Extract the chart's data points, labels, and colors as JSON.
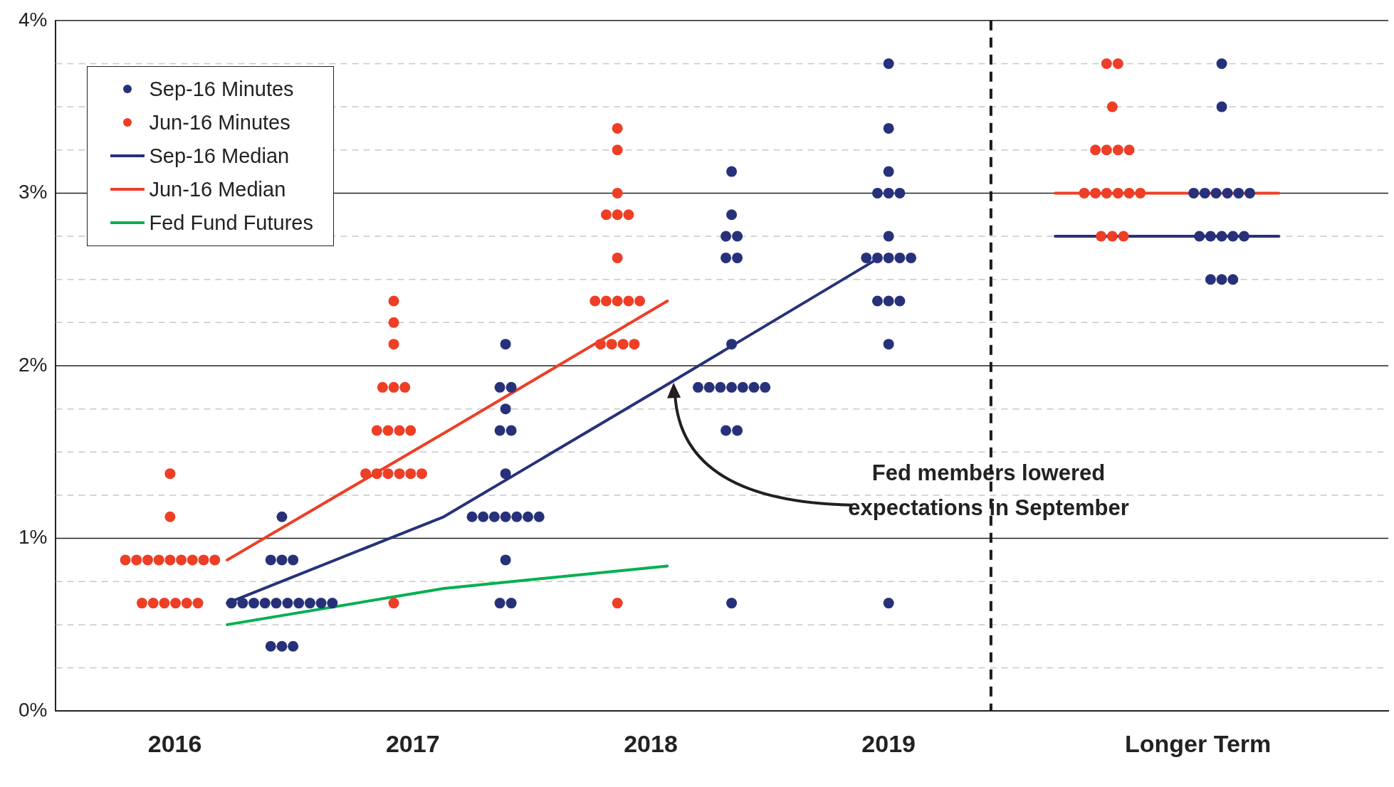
{
  "chart_data": {
    "type": "scatter",
    "xlim": [
      2015.5,
      2021.1
    ],
    "xticks": [
      2016,
      2017,
      2018,
      2019,
      {
        "value": 2020.3,
        "label": "Longer Term"
      }
    ],
    "ylim": [
      0,
      4
    ],
    "yticks": [
      {
        "value": 0,
        "label": "0%"
      },
      {
        "value": 0.25,
        "label": null
      },
      {
        "value": 0.5,
        "label": null
      },
      {
        "value": 0.75,
        "label": null
      },
      {
        "value": 1,
        "label": "1%"
      },
      {
        "value": 1.25,
        "label": null
      },
      {
        "value": 1.5,
        "label": null
      },
      {
        "value": 1.75,
        "label": null
      },
      {
        "value": 2,
        "label": "2%"
      },
      {
        "value": 2.25,
        "label": null
      },
      {
        "value": 2.5,
        "label": null
      },
      {
        "value": 2.75,
        "label": null
      },
      {
        "value": 3,
        "label": "3%"
      },
      {
        "value": 3.25,
        "label": null
      },
      {
        "value": 3.5,
        "label": null
      },
      {
        "value": 3.75,
        "label": null
      },
      {
        "value": 4,
        "label": "4%"
      }
    ],
    "grid": "y",
    "legend": "top left",
    "ref_lines": [
      {
        "axis": "x",
        "value": 2019.43,
        "label": null,
        "color": "#1a1a1a",
        "line_style": "dashed"
      }
    ],
    "annotations": [
      "Fed members lowered\nexpectations in September"
    ],
    "series": [
      {
        "name": "Sep-16 Minutes",
        "type": "scatter",
        "marker": "circle",
        "color": "#27317a",
        "x": [
          2016.45,
          2016.403,
          2016.45,
          2016.497,
          2016.238,
          2016.285,
          2016.332,
          2016.379,
          2016.426,
          2016.474,
          2016.521,
          2016.568,
          2016.615,
          2016.662,
          2016.403,
          2016.45,
          2016.497,
          2017.39,
          2017.366,
          2017.414,
          2017.39,
          2017.366,
          2017.414,
          2017.39,
          2017.249,
          2017.296,
          2017.343,
          2017.39,
          2017.437,
          2017.484,
          2017.531,
          2017.39,
          2017.366,
          2017.414,
          2018.34,
          2018.34,
          2018.316,
          2018.364,
          2018.316,
          2018.364,
          2018.34,
          2018.199,
          2018.246,
          2018.293,
          2018.34,
          2018.387,
          2018.434,
          2018.481,
          2018.316,
          2018.364,
          2018.34,
          2019.0,
          2019.0,
          2019.0,
          2018.953,
          2019.0,
          2019.047,
          2019.0,
          2018.906,
          2018.953,
          2019.0,
          2019.047,
          2019.094,
          2018.953,
          2019.0,
          2019.047,
          2019.0,
          2019.0,
          2020.4,
          2020.4,
          2020.282,
          2020.329,
          2020.376,
          2020.424,
          2020.471,
          2020.518,
          2020.306,
          2020.353,
          2020.4,
          2020.447,
          2020.494,
          2020.353,
          2020.4,
          2020.447
        ],
        "values": [
          1.125,
          0.875,
          0.875,
          0.875,
          0.625,
          0.625,
          0.625,
          0.625,
          0.625,
          0.625,
          0.625,
          0.625,
          0.625,
          0.625,
          0.375,
          0.375,
          0.375,
          2.125,
          1.875,
          1.875,
          1.75,
          1.625,
          1.625,
          1.375,
          1.125,
          1.125,
          1.125,
          1.125,
          1.125,
          1.125,
          1.125,
          0.875,
          0.625,
          0.625,
          3.125,
          2.875,
          2.75,
          2.75,
          2.625,
          2.625,
          2.125,
          1.875,
          1.875,
          1.875,
          1.875,
          1.875,
          1.875,
          1.875,
          1.625,
          1.625,
          0.625,
          3.75,
          3.375,
          3.125,
          3.0,
          3.0,
          3.0,
          2.75,
          2.625,
          2.625,
          2.625,
          2.625,
          2.625,
          2.375,
          2.375,
          2.375,
          2.125,
          0.625,
          3.75,
          3.5,
          3.0,
          3.0,
          3.0,
          3.0,
          3.0,
          3.0,
          2.75,
          2.75,
          2.75,
          2.75,
          2.75,
          2.5,
          2.5,
          2.5
        ]
      },
      {
        "name": "Jun-16 Minutes",
        "type": "scatter",
        "marker": "circle",
        "color": "#ee3e26",
        "x": [
          2015.98,
          2015.98,
          2015.792,
          2015.839,
          2015.886,
          2015.933,
          2015.98,
          2016.027,
          2016.074,
          2016.121,
          2016.168,
          2015.862,
          2015.909,
          2015.956,
          2016.003,
          2016.05,
          2016.097,
          2016.92,
          2016.92,
          2016.92,
          2016.873,
          2016.92,
          2016.967,
          2016.849,
          2016.896,
          2016.944,
          2016.991,
          2016.802,
          2016.849,
          2016.896,
          2016.944,
          2016.991,
          2017.038,
          2016.92,
          2017.86,
          2017.86,
          2017.86,
          2017.813,
          2017.86,
          2017.907,
          2017.86,
          2017.766,
          2017.813,
          2017.86,
          2017.907,
          2017.954,
          2017.789,
          2017.836,
          2017.884,
          2017.931,
          2017.86,
          2019.916,
          2019.964,
          2019.94,
          2019.869,
          2019.916,
          2019.964,
          2020.011,
          2019.822,
          2019.869,
          2019.916,
          2019.964,
          2020.011,
          2020.058,
          2019.893,
          2019.94,
          2019.987
        ],
        "values": [
          1.375,
          1.125,
          0.875,
          0.875,
          0.875,
          0.875,
          0.875,
          0.875,
          0.875,
          0.875,
          0.875,
          0.625,
          0.625,
          0.625,
          0.625,
          0.625,
          0.625,
          2.375,
          2.25,
          2.125,
          1.875,
          1.875,
          1.875,
          1.625,
          1.625,
          1.625,
          1.625,
          1.375,
          1.375,
          1.375,
          1.375,
          1.375,
          1.375,
          0.625,
          3.375,
          3.25,
          3.0,
          2.875,
          2.875,
          2.875,
          2.625,
          2.375,
          2.375,
          2.375,
          2.375,
          2.375,
          2.125,
          2.125,
          2.125,
          2.125,
          0.625,
          3.75,
          3.75,
          3.5,
          3.25,
          3.25,
          3.25,
          3.25,
          3.0,
          3.0,
          3.0,
          3.0,
          3.0,
          3.0,
          2.75,
          2.75,
          2.75
        ]
      },
      {
        "name": "Sep-16 Median",
        "type": "line",
        "color": "#27317a",
        "x": [
          2016.22,
          2017.13,
          2018.05,
          2018.96,
          2019.43,
          2019.7,
          2020.64
        ],
        "values": [
          0.625,
          1.125,
          1.875,
          2.625,
          null,
          2.75,
          2.75
        ]
      },
      {
        "name": "Jun-16 Median",
        "type": "line",
        "color": "#ee3e26",
        "x": [
          2016.22,
          2017.15,
          2018.07,
          2019.43,
          2019.7,
          2020.64
        ],
        "values": [
          0.875,
          1.625,
          2.375,
          null,
          3.0,
          3.0
        ]
      },
      {
        "name": "Fed Fund Futures",
        "type": "line",
        "color": "#00b050",
        "x": [
          2016.22,
          2017.13,
          2018.07
        ],
        "values": [
          0.5,
          0.71,
          0.84
        ]
      }
    ]
  }
}
